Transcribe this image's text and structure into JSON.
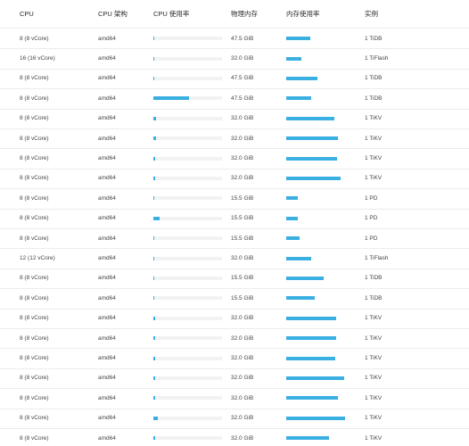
{
  "columns": {
    "cpu": "CPU",
    "arch": "CPU 架构",
    "cpu_usage": "CPU 使用率",
    "memory": "物理内存",
    "mem_usage": "内存使用率",
    "instance": "实例"
  },
  "colors": {
    "bar_fill": "#3ab0e2",
    "bar_track": "#f2f2f2"
  },
  "rows": [
    {
      "cpu": "8 (8 vCore)",
      "arch": "amd64",
      "cpu_usage": 0.01,
      "memory": "47.5 GiB",
      "mem_usage": 0.41,
      "instance": "1 TiDB"
    },
    {
      "cpu": "16 (16 vCore)",
      "arch": "amd64",
      "cpu_usage": 0.01,
      "memory": "32.0 GiB",
      "mem_usage": 0.25,
      "instance": "1 TiFlash"
    },
    {
      "cpu": "8 (8 vCore)",
      "arch": "amd64",
      "cpu_usage": 0.01,
      "memory": "47.5 GiB",
      "mem_usage": 0.53,
      "instance": "1 TiDB"
    },
    {
      "cpu": "8 (8 vCore)",
      "arch": "amd64",
      "cpu_usage": 0.52,
      "memory": "47.5 GiB",
      "mem_usage": 0.43,
      "instance": "1 TiDB"
    },
    {
      "cpu": "8 (8 vCore)",
      "arch": "amd64",
      "cpu_usage": 0.04,
      "memory": "32.0 GiB",
      "mem_usage": 0.82,
      "instance": "1 TiKV"
    },
    {
      "cpu": "8 (8 vCore)",
      "arch": "amd64",
      "cpu_usage": 0.04,
      "memory": "32.0 GiB",
      "mem_usage": 0.88,
      "instance": "1 TiKV"
    },
    {
      "cpu": "8 (8 vCore)",
      "arch": "amd64",
      "cpu_usage": 0.02,
      "memory": "32.0 GiB",
      "mem_usage": 0.86,
      "instance": "1 TiKV"
    },
    {
      "cpu": "8 (8 vCore)",
      "arch": "amd64",
      "cpu_usage": 0.02,
      "memory": "32.0 GiB",
      "mem_usage": 0.92,
      "instance": "1 TiKV"
    },
    {
      "cpu": "8 (8 vCore)",
      "arch": "amd64",
      "cpu_usage": 0.01,
      "memory": "15.5 GiB",
      "mem_usage": 0.19,
      "instance": "1 PD"
    },
    {
      "cpu": "8 (8 vCore)",
      "arch": "amd64",
      "cpu_usage": 0.09,
      "memory": "15.5 GiB",
      "mem_usage": 0.2,
      "instance": "1 PD"
    },
    {
      "cpu": "8 (8 vCore)",
      "arch": "amd64",
      "cpu_usage": 0.01,
      "memory": "15.5 GiB",
      "mem_usage": 0.22,
      "instance": "1 PD"
    },
    {
      "cpu": "12 (12 vCore)",
      "arch": "amd64",
      "cpu_usage": 0.01,
      "memory": "32.0 GiB",
      "mem_usage": 0.43,
      "instance": "1 TiFlash"
    },
    {
      "cpu": "8 (8 vCore)",
      "arch": "amd64",
      "cpu_usage": 0.01,
      "memory": "15.5 GiB",
      "mem_usage": 0.63,
      "instance": "1 TiDB"
    },
    {
      "cpu": "8 (8 vCore)",
      "arch": "amd64",
      "cpu_usage": 0.01,
      "memory": "15.5 GiB",
      "mem_usage": 0.48,
      "instance": "1 TiDB"
    },
    {
      "cpu": "8 (8 vCore)",
      "arch": "amd64",
      "cpu_usage": 0.03,
      "memory": "32.0 GiB",
      "mem_usage": 0.85,
      "instance": "1 TiKV"
    },
    {
      "cpu": "8 (8 vCore)",
      "arch": "amd64",
      "cpu_usage": 0.02,
      "memory": "32.0 GiB",
      "mem_usage": 0.85,
      "instance": "1 TiKV"
    },
    {
      "cpu": "8 (8 vCore)",
      "arch": "amd64",
      "cpu_usage": 0.02,
      "memory": "32.0 GiB",
      "mem_usage": 0.83,
      "instance": "1 TiKV"
    },
    {
      "cpu": "8 (8 vCore)",
      "arch": "amd64",
      "cpu_usage": 0.02,
      "memory": "32.0 GiB",
      "mem_usage": 0.98,
      "instance": "1 TiKV"
    },
    {
      "cpu": "8 (8 vCore)",
      "arch": "amd64",
      "cpu_usage": 0.03,
      "memory": "32.0 GiB",
      "mem_usage": 0.88,
      "instance": "1 TiKV"
    },
    {
      "cpu": "8 (8 vCore)",
      "arch": "amd64",
      "cpu_usage": 0.06,
      "memory": "32.0 GiB",
      "mem_usage": 1.0,
      "instance": "1 TiKV"
    },
    {
      "cpu": "8 (8 vCore)",
      "arch": "amd64",
      "cpu_usage": 0.02,
      "memory": "32.0 GiB",
      "mem_usage": 0.73,
      "instance": "1 TiKV"
    }
  ]
}
